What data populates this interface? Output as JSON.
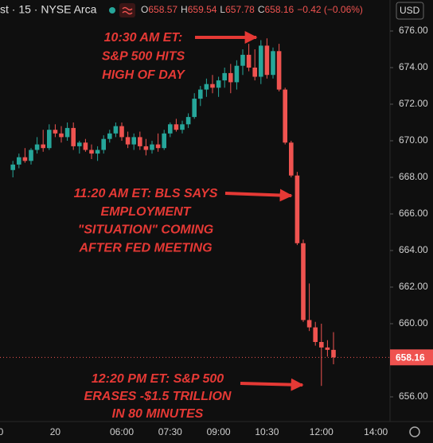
{
  "chart_data": {
    "type": "candlestick",
    "symbol": "st · 15 · NYSE Arca",
    "ohlc": [
      {
        "label": "O",
        "value": 658.57
      },
      {
        "label": "H",
        "value": 659.54
      },
      {
        "label": "L",
        "value": 657.78
      },
      {
        "label": "C",
        "value": 658.16
      }
    ],
    "change": "−0.42 (−0.06%)",
    "currency": "USD",
    "last_price": 658.16,
    "up_color": "#26a69a",
    "down_color": "#ef5350",
    "grid": false,
    "categories": [
      "0",
      null,
      null,
      null,
      null,
      null,
      null,
      null,
      null,
      "20",
      null,
      null,
      null,
      null,
      null,
      null,
      null,
      null,
      null,
      null,
      "06:00",
      null,
      null,
      null,
      null,
      null,
      null,
      null,
      "07:30",
      null,
      null,
      null,
      null,
      null,
      null,
      null,
      "09:00",
      null,
      null,
      null,
      null,
      null,
      null,
      null,
      "10:30",
      null,
      null,
      null,
      null,
      null,
      null,
      null,
      null,
      "12:00",
      null,
      null,
      null,
      null,
      null,
      null,
      null,
      null,
      "14:00",
      null
    ],
    "open": [
      null,
      null,
      668.4,
      668.7,
      669.1,
      668.9,
      669.5,
      669.8,
      669.6,
      670.6,
      670.4,
      670.2,
      670.7,
      669.7,
      669.9,
      669.5,
      669.3,
      669.5,
      670.1,
      670.4,
      670.8,
      670.2,
      669.8,
      670.2,
      669.7,
      669.5,
      669.8,
      669.6,
      670.4,
      670.9,
      670.6,
      670.9,
      671.3,
      672.3,
      672.8,
      673.1,
      672.9,
      673.3,
      673.7,
      673.2,
      674.1,
      674.7,
      674.0,
      673.5,
      675.2,
      673.6,
      674.9,
      672.8,
      669.9,
      668.1,
      664.4,
      660.2,
      659.8,
      659.0,
      658.7,
      658.57,
      null,
      null,
      null,
      null,
      null,
      null,
      null,
      null
    ],
    "high": [
      null,
      null,
      668.9,
      669.3,
      669.6,
      669.6,
      670.2,
      670.6,
      670.9,
      670.9,
      670.8,
      671.0,
      671.0,
      670.0,
      670.1,
      669.8,
      669.7,
      670.3,
      670.6,
      671.0,
      671.0,
      670.5,
      670.4,
      670.5,
      670.1,
      670.0,
      670.4,
      670.6,
      671.0,
      671.2,
      671.1,
      671.5,
      672.6,
      673.0,
      673.4,
      673.6,
      673.5,
      674.0,
      674.2,
      674.4,
      675.0,
      675.3,
      675.0,
      675.5,
      675.6,
      675.1,
      675.3,
      672.9,
      670.0,
      668.3,
      664.6,
      662.2,
      660.1,
      660.0,
      659.1,
      659.54,
      null,
      null,
      null,
      null,
      null,
      null,
      null,
      null
    ],
    "low": [
      null,
      null,
      668.0,
      668.5,
      668.8,
      668.7,
      669.3,
      669.4,
      669.5,
      670.2,
      669.9,
      670.0,
      669.5,
      669.3,
      669.4,
      669.0,
      668.9,
      669.3,
      669.9,
      670.2,
      670.0,
      669.6,
      669.5,
      669.5,
      669.2,
      669.3,
      669.4,
      669.5,
      670.2,
      670.5,
      670.4,
      670.7,
      671.2,
      671.9,
      672.4,
      672.6,
      672.4,
      672.9,
      672.6,
      672.8,
      673.6,
      673.8,
      673.3,
      673.1,
      673.4,
      673.4,
      672.7,
      669.8,
      668.0,
      664.3,
      660.1,
      659.6,
      658.8,
      656.6,
      658.2,
      657.78,
      null,
      null,
      null,
      null,
      null,
      null,
      null,
      null
    ],
    "close": [
      null,
      null,
      668.7,
      669.1,
      668.9,
      669.5,
      669.8,
      669.6,
      670.6,
      670.4,
      670.2,
      670.7,
      669.7,
      669.9,
      669.5,
      669.3,
      669.5,
      670.1,
      670.4,
      670.8,
      670.2,
      669.8,
      670.2,
      669.7,
      669.5,
      669.8,
      669.6,
      670.4,
      670.9,
      670.6,
      670.9,
      671.3,
      672.3,
      672.8,
      673.1,
      672.9,
      673.3,
      673.7,
      673.2,
      674.1,
      674.7,
      674.0,
      673.5,
      675.2,
      673.6,
      674.9,
      672.8,
      669.9,
      668.1,
      664.4,
      660.2,
      659.8,
      659.0,
      658.7,
      658.57,
      658.16,
      null,
      null,
      null,
      null,
      null,
      null,
      null,
      null
    ],
    "ylim": [
      655,
      677.7
    ],
    "yticks": [
      {
        "value": 656,
        "label": "656.00"
      },
      {
        "value": 658,
        "label": "658.00"
      },
      {
        "value": 660,
        "label": "660.00"
      },
      {
        "value": 662,
        "label": "662.00"
      },
      {
        "value": 664,
        "label": "664.00"
      },
      {
        "value": 666,
        "label": "666.00"
      },
      {
        "value": 668,
        "label": "668.00"
      },
      {
        "value": 670,
        "label": "670.00"
      },
      {
        "value": 672,
        "label": "672.00"
      },
      {
        "value": 674,
        "label": "674.00"
      },
      {
        "value": 676,
        "label": "676.00"
      }
    ],
    "annotations": [
      [
        "10:30 AM ET:",
        "S&P 500 HITS",
        "HIGH OF DAY"
      ],
      [
        "11:20 AM ET: BLS SAYS",
        "EMPLOYMENT",
        "\"SITUATION\" COMING",
        "AFTER FED MEETING"
      ],
      [
        "12:20 PM ET: S&P 500",
        "ERASES -$1.5 TRILLION",
        "IN 80 MINUTES"
      ]
    ]
  }
}
